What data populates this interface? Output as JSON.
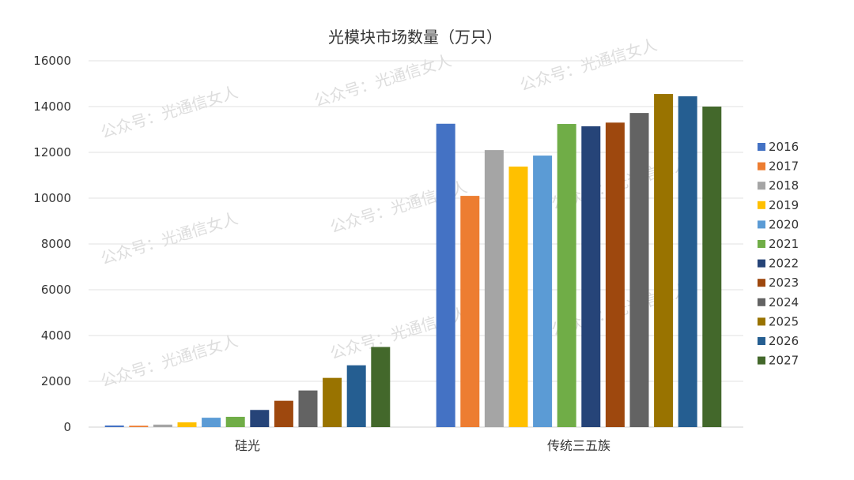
{
  "watermark": "公众号：光通信女人",
  "chart_data": {
    "type": "bar",
    "title": "光模块市场数量（万只）",
    "xlabel": "",
    "ylabel": "",
    "ylim": [
      0,
      16000
    ],
    "yticks": [
      0,
      2000,
      4000,
      6000,
      8000,
      10000,
      12000,
      14000,
      16000
    ],
    "grid": true,
    "legend_position": "right",
    "categories": [
      "硅光",
      "传统三五族"
    ],
    "series": [
      {
        "name": "2016",
        "color": "#4472C4",
        "values": [
          70,
          13250
        ]
      },
      {
        "name": "2017",
        "color": "#ED7D31",
        "values": [
          60,
          10100
        ]
      },
      {
        "name": "2018",
        "color": "#A5A5A5",
        "values": [
          110,
          12100
        ]
      },
      {
        "name": "2019",
        "color": "#FFC000",
        "values": [
          210,
          11380
        ]
      },
      {
        "name": "2020",
        "color": "#5B9BD5",
        "values": [
          410,
          11860
        ]
      },
      {
        "name": "2021",
        "color": "#70AD47",
        "values": [
          450,
          13240
        ]
      },
      {
        "name": "2022",
        "color": "#264478",
        "values": [
          750,
          13140
        ]
      },
      {
        "name": "2023",
        "color": "#9E480E",
        "values": [
          1150,
          13300
        ]
      },
      {
        "name": "2024",
        "color": "#636363",
        "values": [
          1600,
          13720
        ]
      },
      {
        "name": "2025",
        "color": "#997300",
        "values": [
          2150,
          14550
        ]
      },
      {
        "name": "2026",
        "color": "#255E91",
        "values": [
          2700,
          14450
        ]
      },
      {
        "name": "2027",
        "color": "#43682B",
        "values": [
          3500,
          14000
        ]
      }
    ]
  }
}
